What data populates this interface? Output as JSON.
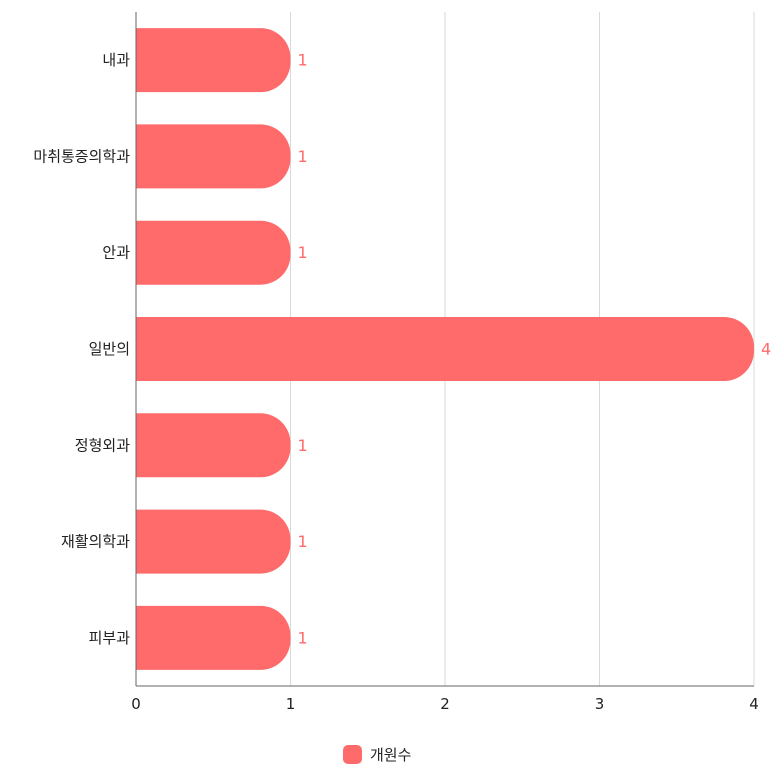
{
  "chart_data": {
    "type": "bar",
    "orientation": "horizontal",
    "categories": [
      "내과",
      "마취통증의학과",
      "안과",
      "일반의",
      "정형외과",
      "재활의학과",
      "피부과"
    ],
    "series": [
      {
        "name": "개원수",
        "values": [
          1,
          1,
          1,
          4,
          1,
          1,
          1
        ]
      }
    ],
    "xlim": [
      0,
      4
    ],
    "xticks": [
      0,
      1,
      2,
      3,
      4
    ],
    "grid": true,
    "legend_position": "bottom",
    "data_labels": true,
    "colors": {
      "bar": "#ff6b6b",
      "label": "#ff6b6b",
      "grid": "#d9d9d9",
      "axis": "#666666"
    }
  }
}
